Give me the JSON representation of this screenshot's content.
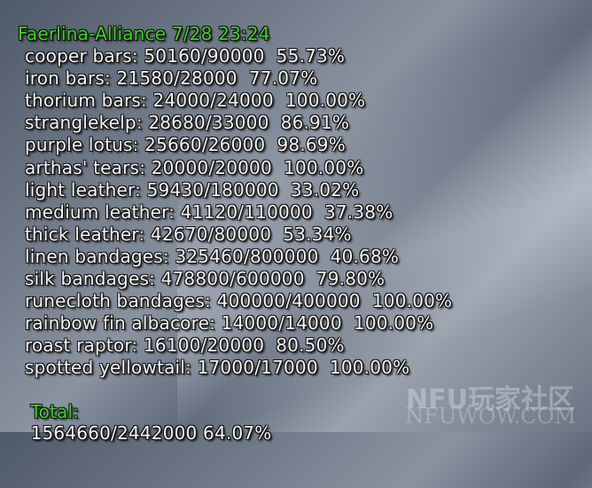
{
  "header": {
    "title": "Faerlina-Alliance 7/28 23:24"
  },
  "items": [
    {
      "name": "cooper bars",
      "current": "50160",
      "target": "90000",
      "percent": "55.73%"
    },
    {
      "name": "iron bars",
      "current": "21580",
      "target": "28000",
      "percent": "77.07%"
    },
    {
      "name": "thorium bars",
      "current": "24000",
      "target": "24000",
      "percent": "100.00%"
    },
    {
      "name": "stranglekelp",
      "current": "28680",
      "target": "33000",
      "percent": "86.91%"
    },
    {
      "name": "purple lotus",
      "current": "25660",
      "target": "26000",
      "percent": "98.69%"
    },
    {
      "name": "arthas' tears",
      "current": "20000",
      "target": "20000",
      "percent": "100.00%"
    },
    {
      "name": "light leather",
      "current": "59430",
      "target": "180000",
      "percent": "33.02%"
    },
    {
      "name": "medium leather",
      "current": "41120",
      "target": "110000",
      "percent": "37.38%"
    },
    {
      "name": "thick leather",
      "current": "42670",
      "target": "80000",
      "percent": "53.34%"
    },
    {
      "name": "linen bandages",
      "current": "325460",
      "target": "800000",
      "percent": "40.68%"
    },
    {
      "name": "silk bandages",
      "current": "478800",
      "target": "600000",
      "percent": "79.80%"
    },
    {
      "name": "runecloth bandages",
      "current": "400000",
      "target": "400000",
      "percent": "100.00%"
    },
    {
      "name": "rainbow fin albacore",
      "current": "14000",
      "target": "14000",
      "percent": "100.00%"
    },
    {
      "name": "roast raptor",
      "current": "16100",
      "target": "20000",
      "percent": "80.50%"
    },
    {
      "name": "spotted yellowtail",
      "current": "17000",
      "target": "17000",
      "percent": "100.00%"
    }
  ],
  "total": {
    "label": "Total:",
    "current": "1564660",
    "target": "2442000",
    "percent": "64.07%"
  },
  "watermark": {
    "logo": "NFU玩家社区",
    "site": "NFUWOW.COM"
  },
  "colors": {
    "title": "#3ed02a",
    "text": "#f4f4f4"
  }
}
